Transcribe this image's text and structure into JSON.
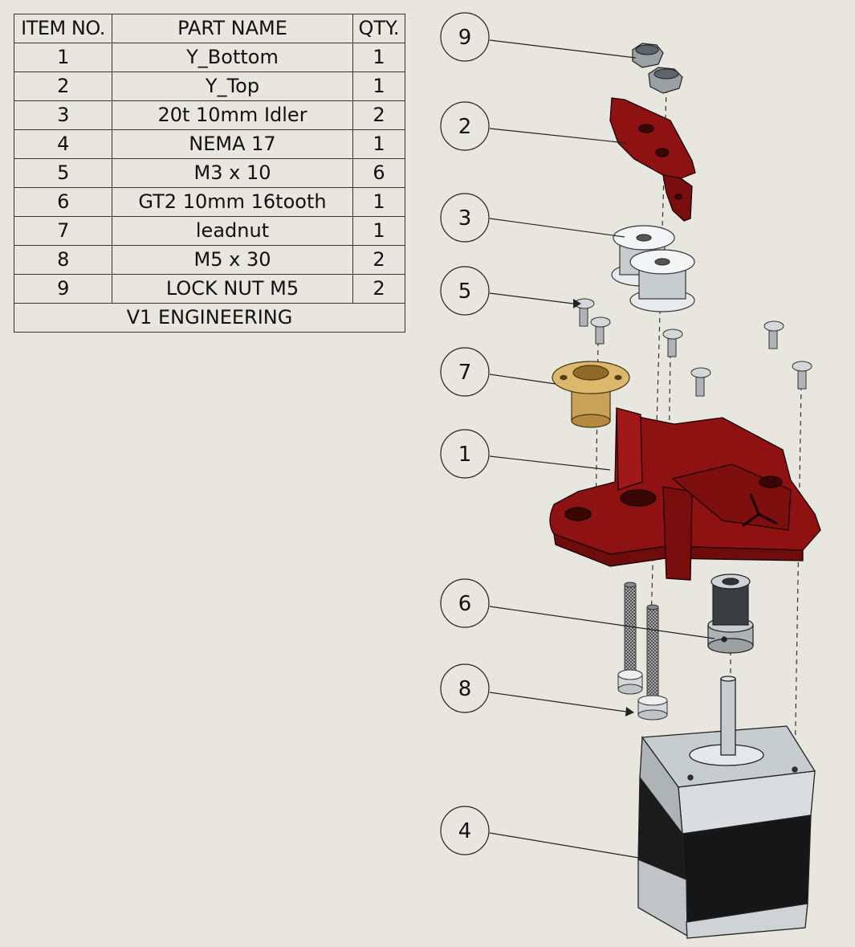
{
  "bom": {
    "headers": {
      "item": "ITEM NO.",
      "part": "PART NAME",
      "qty": "QTY."
    },
    "rows": [
      {
        "item": "1",
        "part": "Y_Bottom",
        "qty": "1"
      },
      {
        "item": "2",
        "part": "Y_Top",
        "qty": "1"
      },
      {
        "item": "3",
        "part": "20t 10mm Idler",
        "qty": "2"
      },
      {
        "item": "4",
        "part": "NEMA 17",
        "qty": "1"
      },
      {
        "item": "5",
        "part": "M3 x 10",
        "qty": "6"
      },
      {
        "item": "6",
        "part": "GT2 10mm 16tooth",
        "qty": "1"
      },
      {
        "item": "7",
        "part": "leadnut",
        "qty": "1"
      },
      {
        "item": "8",
        "part": "M5 x 30",
        "qty": "2"
      },
      {
        "item": "9",
        "part": "LOCK NUT M5",
        "qty": "2"
      }
    ],
    "footer": "V1 ENGINEERING"
  },
  "balloons": [
    "9",
    "2",
    "3",
    "5",
    "7",
    "1",
    "6",
    "8",
    "4"
  ],
  "colors": {
    "background": "#e8e7df",
    "printed_part": "#8f1212",
    "brass": "#c9a25a",
    "metal": "#c7cccf",
    "motor_body": "#151515"
  }
}
